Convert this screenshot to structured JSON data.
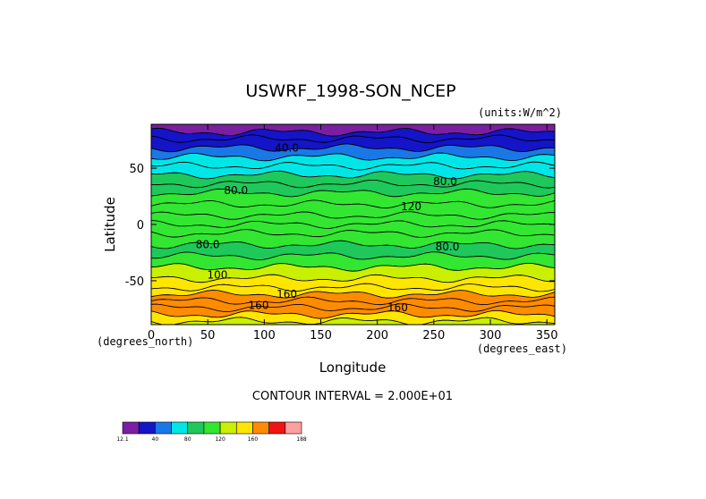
{
  "chart_data": {
    "type": "heatmap",
    "title": "USWRF_1998-SON_NCEP",
    "units": "(units:W/m^2)",
    "xlabel": "Longitude",
    "ylabel": "Latitude",
    "x_unit_label": "(degrees_east)",
    "y_unit_label": "(degrees_north)",
    "xlim": [
      0,
      357
    ],
    "ylim": [
      -89,
      89
    ],
    "x_ticks": [
      "0",
      "50",
      "100",
      "150",
      "200",
      "250",
      "300",
      "350"
    ],
    "x_tick_values": [
      0,
      50,
      100,
      150,
      200,
      250,
      300,
      350
    ],
    "y_ticks": [
      "50",
      "0",
      "-50"
    ],
    "y_tick_values": [
      50,
      0,
      -50
    ],
    "contour_interval_text": "CONTOUR INTERVAL = 2.000E+01",
    "contour_labels": [
      {
        "text": "40.0",
        "x": 120,
        "y": 68
      },
      {
        "text": "80.0",
        "x": 260,
        "y": 38
      },
      {
        "text": "120",
        "x": 230,
        "y": 16
      },
      {
        "text": "80.0",
        "x": 75,
        "y": 30
      },
      {
        "text": "80.0",
        "x": 50,
        "y": -18
      },
      {
        "text": "80.0",
        "x": 262,
        "y": -20
      },
      {
        "text": "100.",
        "x": 60,
        "y": -45
      },
      {
        "text": "160",
        "x": 120,
        "y": -62
      },
      {
        "text": "160",
        "x": 95,
        "y": -72
      },
      {
        "text": "160",
        "x": 218,
        "y": -74
      }
    ],
    "colorbar": {
      "levels": [
        12.1,
        20,
        40,
        60,
        80,
        100,
        120,
        140,
        160,
        180,
        188
      ],
      "tick_labels": [
        "12.1",
        "40",
        "80",
        "120",
        "160",
        "188"
      ],
      "colors": [
        "#7a1fa2",
        "#1414c8",
        "#1a78e6",
        "#00e6e6",
        "#1ec85a",
        "#32e632",
        "#c8f000",
        "#ffe600",
        "#ff8c00",
        "#f01414",
        "#ffa0a0"
      ]
    },
    "zonal_profile": [
      {
        "lat": 89,
        "value": 10
      },
      {
        "lat": 82,
        "value": 20
      },
      {
        "lat": 76,
        "value": 38
      },
      {
        "lat": 68,
        "value": 45
      },
      {
        "lat": 60,
        "value": 60
      },
      {
        "lat": 52,
        "value": 72
      },
      {
        "lat": 44,
        "value": 86
      },
      {
        "lat": 36,
        "value": 95
      },
      {
        "lat": 28,
        "value": 105
      },
      {
        "lat": 18,
        "value": 110
      },
      {
        "lat": 8,
        "value": 118
      },
      {
        "lat": 0,
        "value": 108
      },
      {
        "lat": -8,
        "value": 102
      },
      {
        "lat": -18,
        "value": 98
      },
      {
        "lat": -28,
        "value": 110
      },
      {
        "lat": -38,
        "value": 132
      },
      {
        "lat": -48,
        "value": 152
      },
      {
        "lat": -56,
        "value": 158
      },
      {
        "lat": -62,
        "value": 166
      },
      {
        "lat": -68,
        "value": 176
      },
      {
        "lat": -74,
        "value": 168
      },
      {
        "lat": -80,
        "value": 150
      },
      {
        "lat": -86,
        "value": 122
      },
      {
        "lat": -89,
        "value": 110
      }
    ]
  }
}
